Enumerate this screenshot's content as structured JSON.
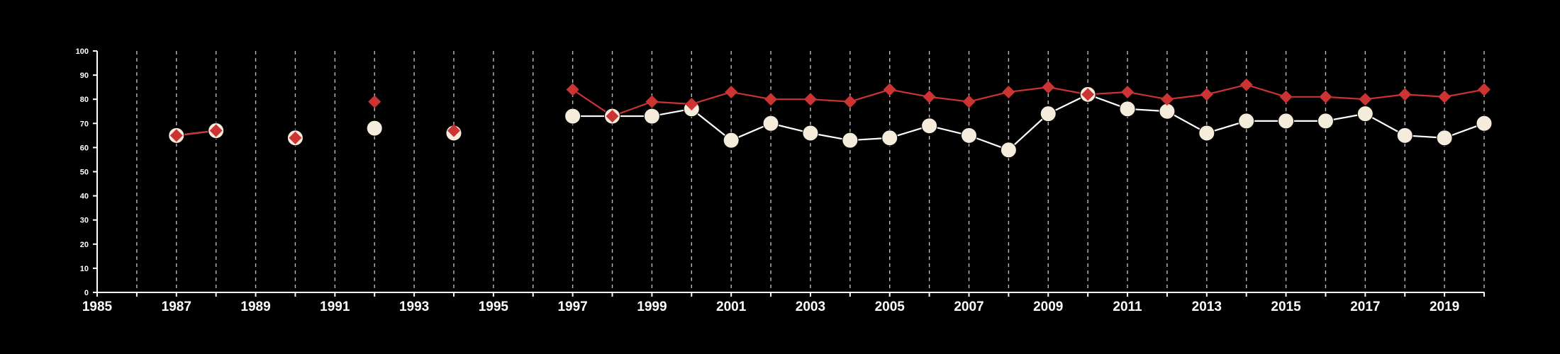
{
  "chart_data": {
    "type": "line",
    "title": "",
    "xlabel": "",
    "ylabel": "",
    "xlim": [
      1985,
      2020
    ],
    "ylim": [
      0,
      100
    ],
    "x_ticks": [
      1985,
      1987,
      1989,
      1991,
      1993,
      1995,
      1997,
      1999,
      2001,
      2003,
      2005,
      2007,
      2009,
      2011,
      2013,
      2015,
      2017,
      2019
    ],
    "y_ticks": [
      0,
      10,
      20,
      30,
      40,
      50,
      60,
      70,
      80,
      90,
      100
    ],
    "vertical_gridlines": "dashed, every year",
    "background_color": "#000000",
    "series": [
      {
        "marker": "circle",
        "color": "#f5ecdc",
        "line_color": "#ffffff",
        "points": [
          {
            "x": 1987,
            "y": 65
          },
          {
            "x": 1988,
            "y": 67
          },
          {
            "x": 1990,
            "y": 64
          },
          {
            "x": 1992,
            "y": 68
          },
          {
            "x": 1994,
            "y": 66
          },
          {
            "x": 1997,
            "y": 73
          },
          {
            "x": 1998,
            "y": 73
          },
          {
            "x": 1999,
            "y": 73
          },
          {
            "x": 2000,
            "y": 76
          },
          {
            "x": 2001,
            "y": 63
          },
          {
            "x": 2002,
            "y": 70
          },
          {
            "x": 2003,
            "y": 66
          },
          {
            "x": 2004,
            "y": 63
          },
          {
            "x": 2005,
            "y": 64
          },
          {
            "x": 2006,
            "y": 69
          },
          {
            "x": 2007,
            "y": 65
          },
          {
            "x": 2008,
            "y": 59
          },
          {
            "x": 2009,
            "y": 74
          },
          {
            "x": 2010,
            "y": 82
          },
          {
            "x": 2011,
            "y": 76
          },
          {
            "x": 2012,
            "y": 75
          },
          {
            "x": 2013,
            "y": 66
          },
          {
            "x": 2014,
            "y": 71
          },
          {
            "x": 2015,
            "y": 71
          },
          {
            "x": 2016,
            "y": 71
          },
          {
            "x": 2017,
            "y": 74
          },
          {
            "x": 2018,
            "y": 65
          },
          {
            "x": 2019,
            "y": 64
          },
          {
            "x": 2020,
            "y": 70
          }
        ]
      },
      {
        "marker": "diamond",
        "color": "#cc3333",
        "line_color": "#cc3333",
        "points": [
          {
            "x": 1987,
            "y": 65
          },
          {
            "x": 1988,
            "y": 67
          },
          {
            "x": 1990,
            "y": 64
          },
          {
            "x": 1992,
            "y": 79
          },
          {
            "x": 1994,
            "y": 67
          },
          {
            "x": 1997,
            "y": 84
          },
          {
            "x": 1998,
            "y": 73
          },
          {
            "x": 1999,
            "y": 79
          },
          {
            "x": 2000,
            "y": 78
          },
          {
            "x": 2001,
            "y": 83
          },
          {
            "x": 2002,
            "y": 80
          },
          {
            "x": 2003,
            "y": 80
          },
          {
            "x": 2004,
            "y": 79
          },
          {
            "x": 2005,
            "y": 84
          },
          {
            "x": 2006,
            "y": 81
          },
          {
            "x": 2007,
            "y": 79
          },
          {
            "x": 2008,
            "y": 83
          },
          {
            "x": 2009,
            "y": 85
          },
          {
            "x": 2010,
            "y": 82
          },
          {
            "x": 2011,
            "y": 83
          },
          {
            "x": 2012,
            "y": 80
          },
          {
            "x": 2013,
            "y": 82
          },
          {
            "x": 2014,
            "y": 86
          },
          {
            "x": 2015,
            "y": 81
          },
          {
            "x": 2016,
            "y": 81
          },
          {
            "x": 2017,
            "y": 80
          },
          {
            "x": 2018,
            "y": 82
          },
          {
            "x": 2019,
            "y": 81
          },
          {
            "x": 2020,
            "y": 84
          }
        ]
      }
    ]
  }
}
